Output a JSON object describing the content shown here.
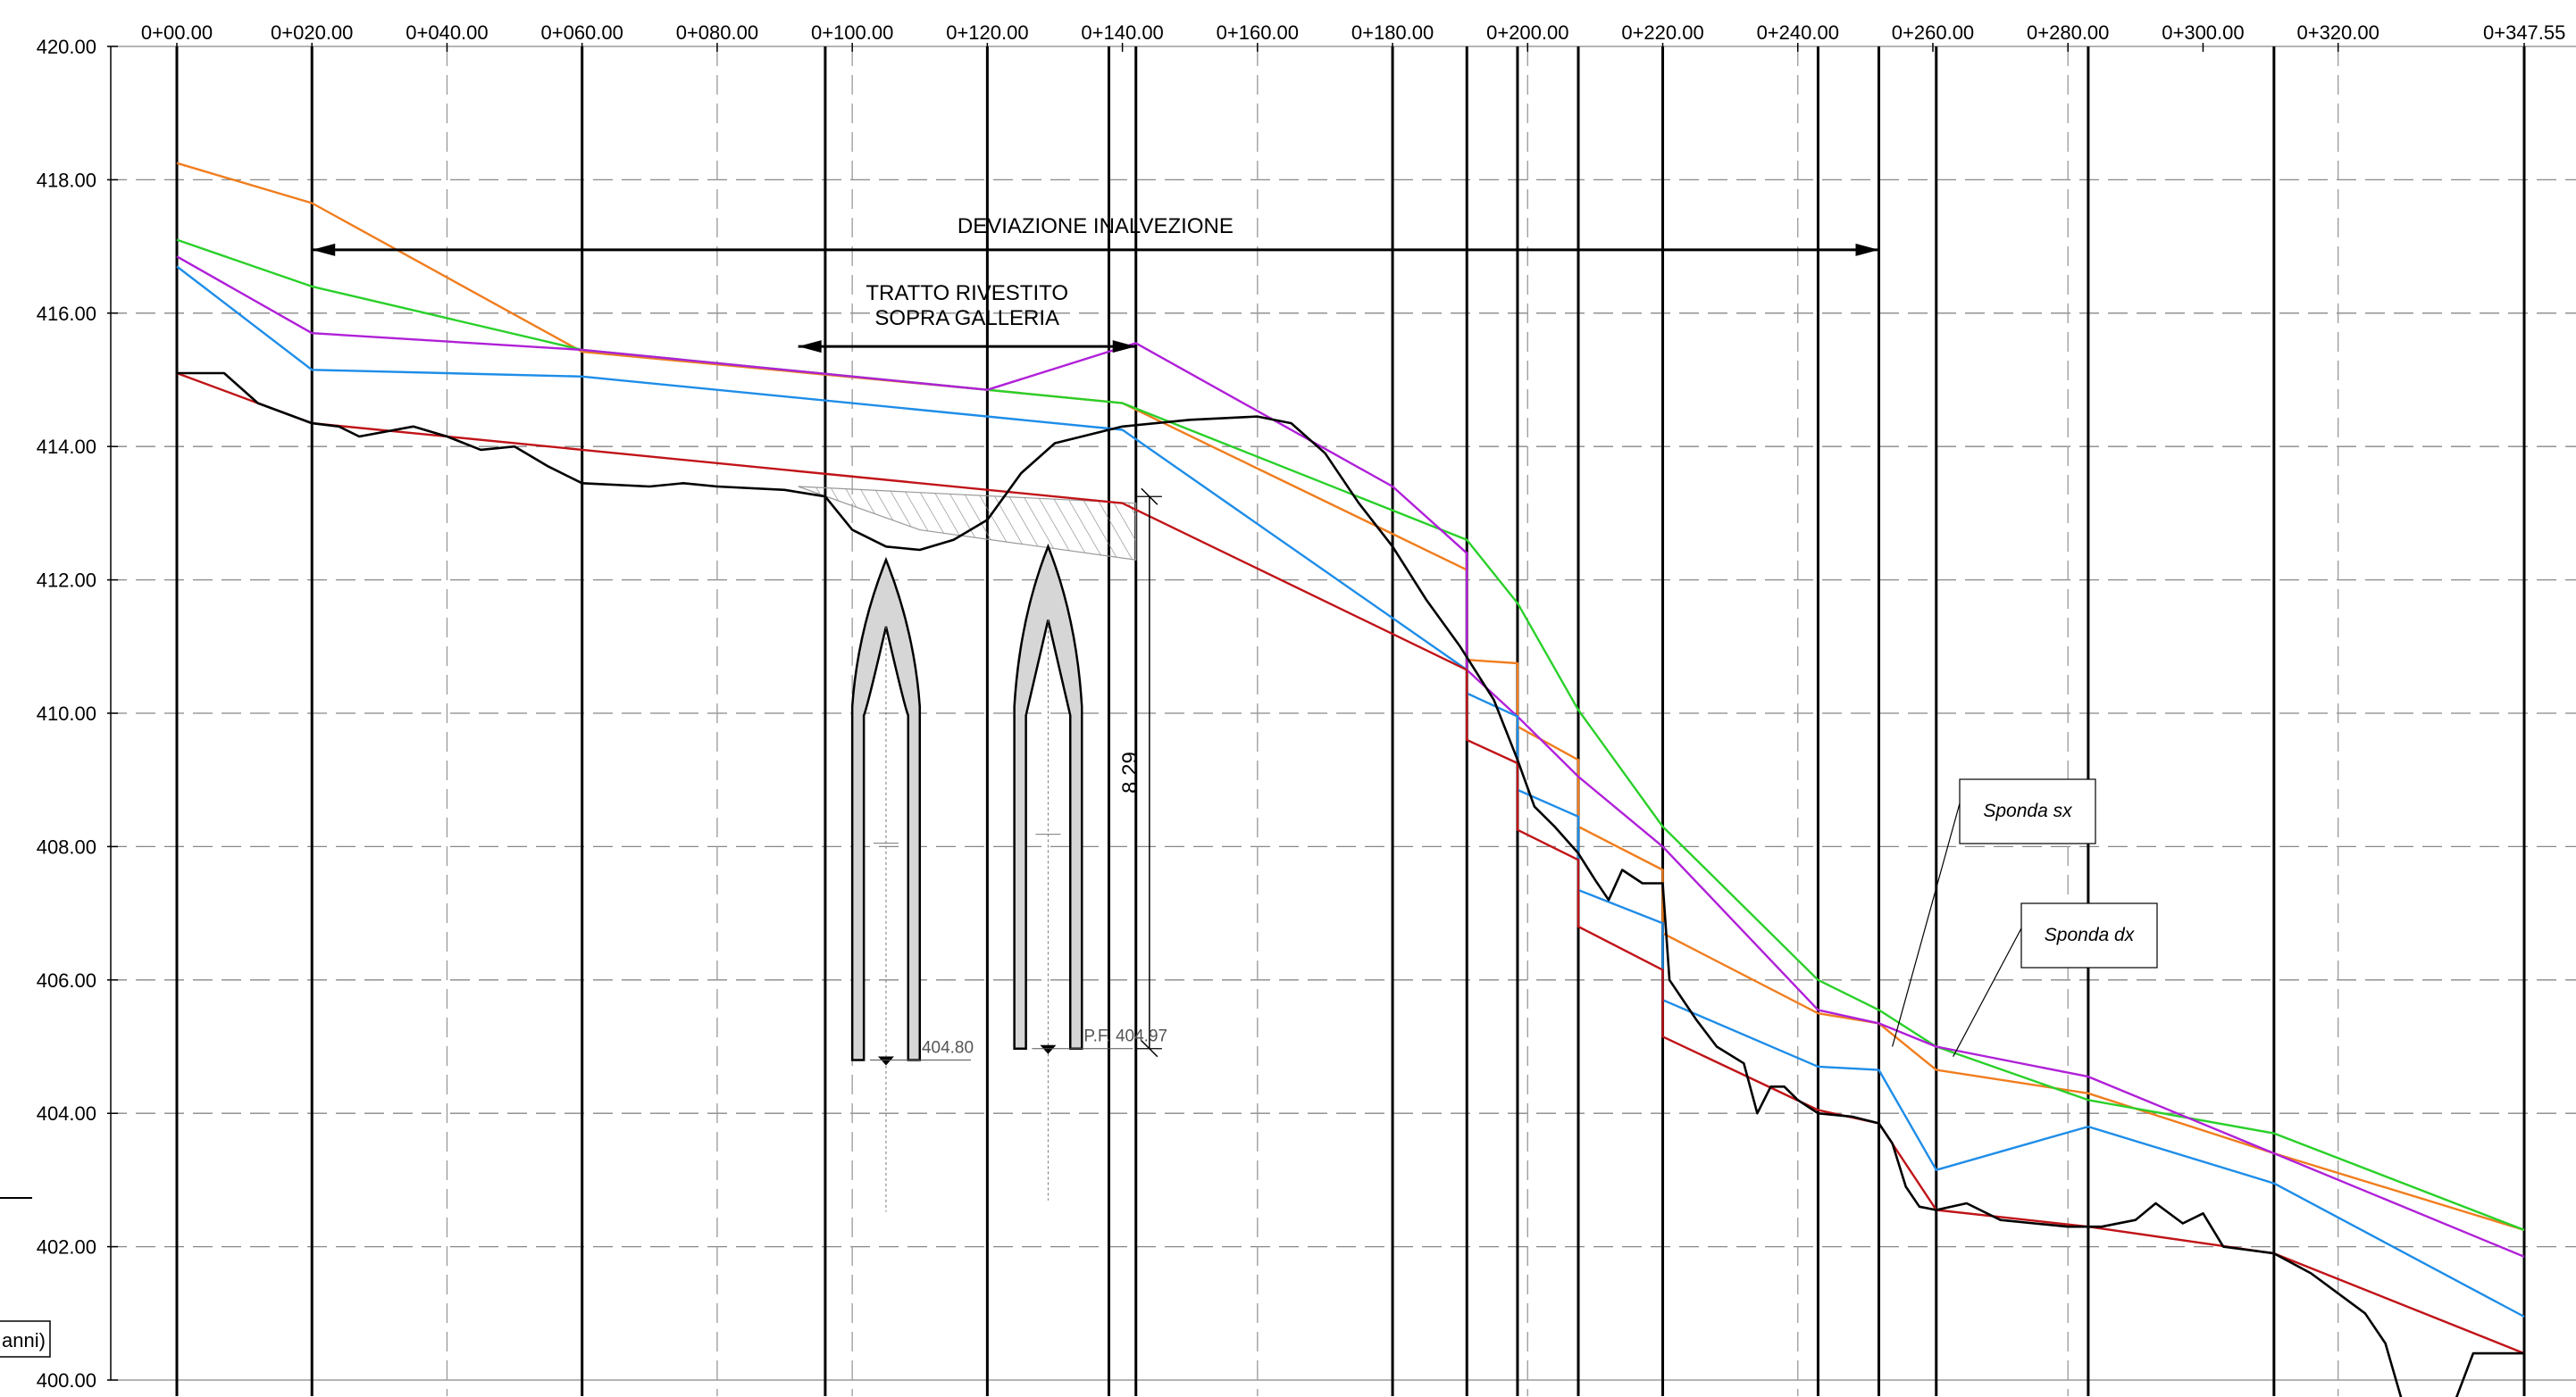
{
  "profile": {
    "x_range": [
      0,
      347.55
    ],
    "y_range": [
      400,
      420
    ],
    "chainage_labels": [
      "0+00.00",
      "0+020.00",
      "0+040.00",
      "0+060.00",
      "0+080.00",
      "0+100.00",
      "0+120.00",
      "0+140.00",
      "0+160.00",
      "0+180.00",
      "0+200.00",
      "0+220.00",
      "0+240.00",
      "0+260.00",
      "0+280.00",
      "0+300.00",
      "0+320.00",
      "0+347.55"
    ],
    "chainage_values": [
      0,
      20,
      40,
      60,
      80,
      100,
      120,
      140,
      160,
      180,
      200,
      220,
      240,
      260,
      280,
      300,
      320,
      347.55
    ],
    "elevation_labels": [
      "420.00",
      "418.00",
      "416.00",
      "414.00",
      "412.00",
      "410.00",
      "408.00",
      "406.00",
      "404.00",
      "402.00",
      "400.00"
    ],
    "elevation_values": [
      420,
      418,
      416,
      414,
      412,
      410,
      408,
      406,
      404,
      402,
      400
    ],
    "section_lines": [
      0,
      20,
      60,
      96,
      120,
      138,
      142,
      180,
      191,
      198.5,
      207.5,
      220,
      243,
      252,
      260.5,
      283,
      310.5,
      347.55
    ],
    "dashed_verticals": [
      40,
      80,
      100,
      160,
      200,
      240,
      280,
      320
    ],
    "series": [
      {
        "color": "#f07d1e",
        "points": [
          [
            0,
            418.25
          ],
          [
            20,
            417.65
          ],
          [
            60,
            415.42
          ],
          [
            120,
            414.85
          ],
          [
            140,
            414.65
          ],
          [
            191,
            412.15
          ],
          [
            191,
            410.8
          ],
          [
            198.5,
            410.75
          ],
          [
            198.5,
            409.8
          ],
          [
            207.5,
            409.3
          ],
          [
            207.5,
            408.3
          ],
          [
            220,
            407.65
          ],
          [
            220,
            406.7
          ],
          [
            243,
            405.5
          ],
          [
            252,
            405.35
          ],
          [
            260.5,
            404.65
          ],
          [
            283,
            404.3
          ],
          [
            310.5,
            403.4
          ],
          [
            347.55,
            402.25
          ]
        ]
      },
      {
        "color": "#2ad02a",
        "points": [
          [
            0,
            417.1
          ],
          [
            20,
            416.4
          ],
          [
            60,
            415.45
          ],
          [
            120,
            414.85
          ],
          [
            140,
            414.65
          ],
          [
            191,
            412.6
          ],
          [
            198.5,
            411.65
          ],
          [
            207.5,
            410.05
          ],
          [
            220,
            408.3
          ],
          [
            243,
            406.0
          ],
          [
            252,
            405.55
          ],
          [
            260.5,
            405.0
          ],
          [
            283,
            404.2
          ],
          [
            310.5,
            403.7
          ],
          [
            347.55,
            402.25
          ]
        ]
      },
      {
        "color": "#b020d8",
        "points": [
          [
            0,
            416.85
          ],
          [
            20,
            415.7
          ],
          [
            60,
            415.45
          ],
          [
            120,
            414.85
          ],
          [
            142,
            415.55
          ],
          [
            180,
            413.4
          ],
          [
            191,
            412.4
          ],
          [
            191,
            410.65
          ],
          [
            198.5,
            409.95
          ],
          [
            207.5,
            409.05
          ],
          [
            220,
            408.0
          ],
          [
            243,
            405.55
          ],
          [
            252,
            405.35
          ],
          [
            260.5,
            405.0
          ],
          [
            283,
            404.55
          ],
          [
            310.5,
            403.4
          ],
          [
            347.55,
            401.85
          ]
        ]
      },
      {
        "color": "#1e8de8",
        "points": [
          [
            0,
            416.7
          ],
          [
            20,
            415.15
          ],
          [
            60,
            415.05
          ],
          [
            140,
            414.25
          ],
          [
            191,
            410.65
          ],
          [
            191,
            410.3
          ],
          [
            198.5,
            409.95
          ],
          [
            198.5,
            408.85
          ],
          [
            207.5,
            408.45
          ],
          [
            207.5,
            407.35
          ],
          [
            220,
            406.85
          ],
          [
            220,
            405.7
          ],
          [
            243,
            404.7
          ],
          [
            252,
            404.65
          ],
          [
            260.5,
            403.15
          ],
          [
            283,
            403.8
          ],
          [
            310.5,
            402.95
          ],
          [
            347.55,
            400.95
          ]
        ]
      },
      {
        "color": "#c01418",
        "points": [
          [
            0,
            415.1
          ],
          [
            20,
            414.35
          ],
          [
            60,
            413.95
          ],
          [
            140,
            413.15
          ],
          [
            191,
            410.65
          ],
          [
            191,
            409.6
          ],
          [
            198.5,
            409.25
          ],
          [
            198.5,
            408.25
          ],
          [
            207.5,
            407.8
          ],
          [
            207.5,
            406.8
          ],
          [
            220,
            406.15
          ],
          [
            220,
            405.15
          ],
          [
            243,
            404.05
          ],
          [
            252,
            403.85
          ],
          [
            260.5,
            402.55
          ],
          [
            283,
            402.3
          ],
          [
            310.5,
            401.9
          ],
          [
            347.55,
            400.4
          ]
        ]
      }
    ],
    "terrain": [
      [
        0,
        415.1
      ],
      [
        7,
        415.1
      ],
      [
        12,
        414.65
      ],
      [
        20,
        414.35
      ],
      [
        24,
        414.3
      ],
      [
        27,
        414.15
      ],
      [
        35,
        414.3
      ],
      [
        40,
        414.15
      ],
      [
        45,
        413.95
      ],
      [
        50,
        414.0
      ],
      [
        55,
        413.7
      ],
      [
        60,
        413.45
      ],
      [
        70,
        413.4
      ],
      [
        75,
        413.45
      ],
      [
        80,
        413.4
      ],
      [
        90,
        413.35
      ],
      [
        96,
        413.25
      ],
      [
        100,
        412.75
      ],
      [
        105,
        412.5
      ],
      [
        110,
        412.45
      ],
      [
        115,
        412.6
      ],
      [
        120,
        412.9
      ],
      [
        125,
        413.6
      ],
      [
        130,
        414.05
      ],
      [
        140,
        414.3
      ],
      [
        150,
        414.4
      ],
      [
        160,
        414.45
      ],
      [
        165,
        414.35
      ],
      [
        170,
        413.9
      ],
      [
        175,
        413.15
      ],
      [
        180,
        412.5
      ],
      [
        185,
        411.7
      ],
      [
        190,
        411.0
      ],
      [
        195,
        410.2
      ],
      [
        198.5,
        409.3
      ],
      [
        201,
        408.6
      ],
      [
        204,
        408.3
      ],
      [
        207.5,
        407.9
      ],
      [
        210,
        407.5
      ],
      [
        212,
        407.2
      ],
      [
        214,
        407.65
      ],
      [
        217,
        407.45
      ],
      [
        220,
        407.45
      ],
      [
        221,
        406.0
      ],
      [
        225,
        405.4
      ],
      [
        228,
        405.0
      ],
      [
        232,
        404.75
      ],
      [
        234,
        404.0
      ],
      [
        236,
        404.4
      ],
      [
        238,
        404.4
      ],
      [
        240,
        404.2
      ],
      [
        243,
        404.0
      ],
      [
        248,
        403.95
      ],
      [
        252,
        403.85
      ],
      [
        254,
        403.55
      ],
      [
        256,
        402.9
      ],
      [
        258,
        402.6
      ],
      [
        260.5,
        402.55
      ],
      [
        265,
        402.65
      ],
      [
        270,
        402.4
      ],
      [
        275,
        402.35
      ],
      [
        280,
        402.3
      ],
      [
        285,
        402.3
      ],
      [
        290,
        402.4
      ],
      [
        293,
        402.65
      ],
      [
        297,
        402.35
      ],
      [
        300,
        402.5
      ],
      [
        303,
        402.0
      ],
      [
        310.5,
        401.9
      ],
      [
        316,
        401.6
      ],
      [
        320,
        401.3
      ],
      [
        324,
        401.0
      ],
      [
        327,
        400.55
      ],
      [
        330,
        399.5
      ],
      [
        337,
        399.6
      ],
      [
        340,
        400.4
      ],
      [
        347.55,
        400.4
      ]
    ],
    "hatch_band": {
      "top": [
        [
          92,
          413.4
        ],
        [
          142,
          413.15
        ]
      ],
      "bottom": [
        [
          110,
          412.75
        ],
        [
          142,
          412.3
        ]
      ]
    },
    "tunnels": [
      {
        "center": 105,
        "left": 100,
        "right": 110,
        "crown_outer": 412.3,
        "crown_inner": 411.3,
        "spring": 410.1,
        "invert": 404.8,
        "label": "404.80"
      },
      {
        "center": 129,
        "left": 124,
        "right": 134,
        "crown_outer": 412.5,
        "crown_inner": 411.4,
        "spring": 410.1,
        "invert": 404.97,
        "label": "P.F. 404.97"
      }
    ],
    "annotations": {
      "deviation_label": "DEVIAZIONE INALVEZIONE",
      "deviation_x": [
        20,
        252
      ],
      "deviation_y": 416.95,
      "tunnel_title_1": "TRATTO RIVESTITO",
      "tunnel_title_2": "SOPRA GALLERIA",
      "tunnel_arrow_x": [
        92,
        142
      ],
      "tunnel_arrow_y": 415.5,
      "dimension_value": "8.29",
      "dimension_x": 144,
      "dimension_y": [
        413.25,
        404.97
      ],
      "left_fragment": "anni)"
    },
    "callouts": [
      {
        "label": "Sponda sx",
        "target": [
          254,
          405.0
        ]
      },
      {
        "label": "Sponda dx",
        "target": [
          263,
          404.85
        ]
      }
    ]
  }
}
